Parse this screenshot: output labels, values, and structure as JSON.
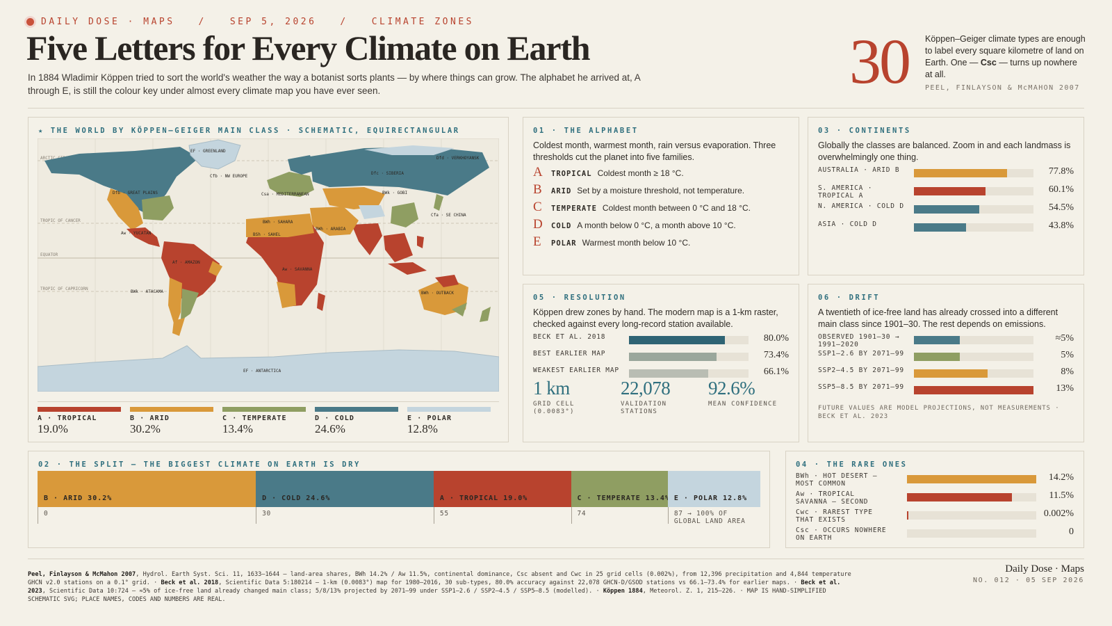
{
  "header": {
    "kicker": "DAILY DOSE · MAPS   /   SEP 5, 2026   /   CLIMATE ZONES",
    "title": "Five Letters for Every Climate on Earth",
    "lede": "In 1884 Wladimir Köppen tried to sort the world's weather the way a botanist sorts plants — by where things can grow. The alphabet he arrived at, A through E, is still the colour key under almost every climate map you have ever seen.",
    "big_number": "30",
    "big_text_1": "Köppen–Geiger climate types are enough to label every square kilometre of land on Earth. One — ",
    "big_text_bold": "Csc",
    "big_text_2": " — turns up nowhere at all.",
    "big_source": "PEEL, FINLAYSON & McMAHON 2007"
  },
  "colors": {
    "tropical": "#b8432e",
    "arid": "#d9993a",
    "temperate": "#8f9e62",
    "cold": "#4a7a88",
    "polar": "#c4d5de",
    "accent": "#b8432e",
    "label": "#2f6f7e"
  },
  "map": {
    "label": "★ THE WORLD BY KÖPPEN–GEIGER MAIN CLASS · SCHEMATIC, EQUIRECTANGULAR",
    "lines": {
      "arctic": "ARCTIC CIRCLE",
      "cancer": "TROPIC OF CANCER",
      "equator": "EQUATOR",
      "capricorn": "TROPIC OF CAPRICORN"
    },
    "places": {
      "greenland": "EF · GREENLAND",
      "verkhoyansk": "Dfd · VERKHOYANSK",
      "nweurope": "Cfb · NW EUROPE",
      "siberia": "Dfc · SIBERIA",
      "greatplains": "Dfb · GREAT PLAINS",
      "mediterranean": "Csa · MEDITERRANEAN",
      "gobi": "BWk · GOBI",
      "sechina": "Cfa · SE CHINA",
      "sahara": "BWh · SAHARA",
      "arabia": "BWh · ARABIA",
      "sahel": "BSh · SAHEL",
      "yucatan": "Aw · YUCATÁN",
      "amazon": "Af · AMAZON",
      "savanna": "Aw · SAVANNA",
      "atacama": "BWk · ATACAMA",
      "outback": "BWh · OUTBACK",
      "antarctica": "EF · ANTARCTICA"
    },
    "legend": [
      {
        "name": "A · TROPICAL",
        "pct": "19.0%",
        "color": "#b8432e"
      },
      {
        "name": "B · ARID",
        "pct": "30.2%",
        "color": "#d9993a"
      },
      {
        "name": "C · TEMPERATE",
        "pct": "13.4%",
        "color": "#8f9e62"
      },
      {
        "name": "D · COLD",
        "pct": "24.6%",
        "color": "#4a7a88"
      },
      {
        "name": "E · POLAR",
        "pct": "12.8%",
        "color": "#c4d5de"
      }
    ]
  },
  "alphabet": {
    "label": "01 · THE ALPHABET",
    "intro": "Coldest month, warmest month, rain versus evaporation. Three thresholds cut the planet into five families.",
    "items": [
      {
        "letter": "A",
        "name": "TROPICAL",
        "desc": "Coldest month ≥ 18 °C."
      },
      {
        "letter": "B",
        "name": "ARID",
        "desc": "Set by a moisture threshold, not temperature."
      },
      {
        "letter": "C",
        "name": "TEMPERATE",
        "desc": "Coldest month between 0 °C and 18 °C."
      },
      {
        "letter": "D",
        "name": "COLD",
        "desc": "A month below 0 °C, a month above 10 °C."
      },
      {
        "letter": "E",
        "name": "POLAR",
        "desc": "Warmest month below 10 °C."
      }
    ]
  },
  "continents": {
    "label": "03 · CONTINENTS",
    "intro": "Globally the classes are balanced. Zoom in and each landmass is overwhelmingly one thing.",
    "rows": [
      {
        "name": "AUSTRALIA · ARID B",
        "value": "77.8%",
        "fraction": 0.778,
        "color": "#d9993a"
      },
      {
        "name": "S. AMERICA · TROPICAL A",
        "value": "60.1%",
        "fraction": 0.601,
        "color": "#b8432e"
      },
      {
        "name": "N. AMERICA · COLD D",
        "value": "54.5%",
        "fraction": 0.545,
        "color": "#4a7a88"
      },
      {
        "name": "ASIA · COLD D",
        "value": "43.8%",
        "fraction": 0.438,
        "color": "#4a7a88"
      }
    ]
  },
  "resolution": {
    "label": "05 · RESOLUTION",
    "intro": "Köppen drew zones by hand. The modern map is a 1-km raster, checked against every long-record station available.",
    "rows": [
      {
        "name": "BECK ET AL. 2018",
        "value": "80.0%",
        "fraction": 0.8,
        "color": "#2f6474"
      },
      {
        "name": "BEST EARLIER MAP",
        "value": "73.4%",
        "fraction": 0.734,
        "color": "#9aa79c"
      },
      {
        "name": "WEAKEST EARLIER MAP",
        "value": "66.1%",
        "fraction": 0.661,
        "color": "#b9bdb3"
      }
    ],
    "stats": [
      {
        "value": "1 km",
        "label": "GRID CELL (0.0083°)"
      },
      {
        "value": "22,078",
        "label": "VALIDATION STATIONS"
      },
      {
        "value": "92.6%",
        "label": "MEAN CONFIDENCE"
      }
    ]
  },
  "drift": {
    "label": "06 · DRIFT",
    "intro": "A twentieth of ice-free land has already crossed into a different main class since 1901–30. The rest depends on emissions.",
    "rows": [
      {
        "name": "OBSERVED 1901–30 → 1991–2020",
        "value": "≈5%",
        "fraction": 0.385,
        "color": "#4a7a88"
      },
      {
        "name": "SSP1–2.6 BY 2071–99",
        "value": "5%",
        "fraction": 0.385,
        "color": "#8f9e62"
      },
      {
        "name": "SSP2–4.5 BY 2071–99",
        "value": "8%",
        "fraction": 0.615,
        "color": "#d9993a"
      },
      {
        "name": "SSP5–8.5 BY 2071–99",
        "value": "13%",
        "fraction": 1.0,
        "color": "#b8432e"
      }
    ],
    "note": "FUTURE VALUES ARE MODEL PROJECTIONS, NOT MEASUREMENTS · BECK ET AL. 2023"
  },
  "split": {
    "label": "02 · THE SPLIT — THE BIGGEST CLIMATE ON EARTH IS DRY",
    "segments": [
      {
        "label": "B · ARID 30.2%",
        "share": 30.2,
        "color": "#d9993a"
      },
      {
        "label": "D · COLD 24.6%",
        "share": 24.6,
        "color": "#4a7a88"
      },
      {
        "label": "A · TROPICAL 19.0%",
        "share": 19.0,
        "color": "#b8432e"
      },
      {
        "label": "C · TEMPERATE 13.4%",
        "share": 13.4,
        "color": "#8f9e62"
      },
      {
        "label": "E · POLAR 12.8%",
        "share": 12.8,
        "color": "#c4d5de"
      }
    ],
    "ticks": [
      "0",
      "30",
      "55",
      "74",
      "87 → 100% OF GLOBAL LAND AREA"
    ]
  },
  "rare": {
    "label": "04 · THE RARE ONES",
    "rows": [
      {
        "name": "BWh · HOT DESERT — MOST COMMON",
        "value": "14.2%",
        "fraction": 1.0,
        "color": "#d9993a"
      },
      {
        "name": "Aw · TROPICAL SAVANNA — SECOND",
        "value": "11.5%",
        "fraction": 0.81,
        "color": "#b8432e"
      },
      {
        "name": "Cwc · RAREST TYPE THAT EXISTS",
        "value": "0.002%",
        "fraction": 0.008,
        "color": "#b8432e"
      },
      {
        "name": "Csc · OCCURS NOWHERE ON EARTH",
        "value": "0",
        "fraction": 0,
        "color": "#b8432e"
      }
    ]
  },
  "footer": {
    "s1b": "Peel, Finlayson & McMahon 2007",
    "s1": ", Hydrol. Earth Syst. Sci. 11, 1633–1644 — land-area shares, BWh 14.2% / Aw 11.5%, continental dominance, Csc absent and Cwc in 25 grid cells (0.002%), from 12,396 precipitation and 4,844 temperature GHCN v2.0 stations on a 0.1° grid.  ·  ",
    "s2b": "Beck et al. 2018",
    "s2": ", Scientific Data 5:180214 — 1-km (0.0083°) map for 1980–2016, 30 sub-types, 80.0% accuracy against 22,078 GHCN-D/GSOD stations vs 66.1–73.4% for earlier maps.  ·  ",
    "s3b": "Beck et al. 2023",
    "s3": ", Scientific Data 10:724 — ≈5% of ice-free land already changed main class; 5/8/13% projected by 2071–99 under SSP1–2.6 / SSP2–4.5 / SSP5–8.5 (modelled).  ·  ",
    "s4b": "Köppen 1884",
    "s4": ", Meteorol. Z. 1, 215–226.  ·  MAP IS HAND-SIMPLIFIED SCHEMATIC SVG; PLACE NAMES, CODES AND NUMBERS ARE REAL.",
    "brand": "Daily Dose · Maps",
    "issue": "NO. 012 · 05 SEP 2026"
  }
}
